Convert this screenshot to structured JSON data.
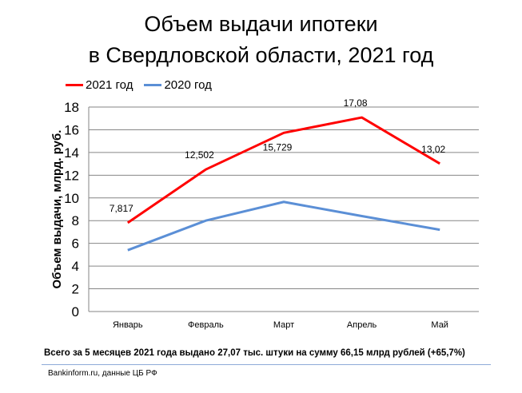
{
  "chart_data": {
    "type": "line",
    "title": [
      "Объем выдачи ипотеки",
      "в Свердловской  области, 2021 год"
    ],
    "xlabel": "",
    "ylabel": "Объем выдачи, млрд. руб.",
    "ylim": [
      0,
      18
    ],
    "yticks": [
      "0",
      "2",
      "4",
      "6",
      "8",
      "10",
      "12",
      "14",
      "16",
      "18"
    ],
    "categories": [
      "Январь",
      "Февраль",
      "Март",
      "Апрель",
      "Май"
    ],
    "grid": true,
    "legend_position": "top-left",
    "series": [
      {
        "name": "2021 год",
        "color": "#ff0000",
        "values": [
          7.817,
          12.502,
          15.729,
          17.08,
          13.02
        ],
        "labels": [
          "7,817",
          "12,502",
          "15,729",
          "17,08",
          "13,02"
        ]
      },
      {
        "name": "2020 год",
        "color": "#5b8fd6",
        "values": [
          5.4,
          8.0,
          9.65,
          8.4,
          7.2
        ]
      }
    ]
  },
  "summary": "Всего за  5 месяцев 2021 года  выдано 27,07 тыс. штуки на сумму 66,15 млрд  рублей  (+65,7%)",
  "source": "Bankinform.ru,  данные ЦБ РФ"
}
